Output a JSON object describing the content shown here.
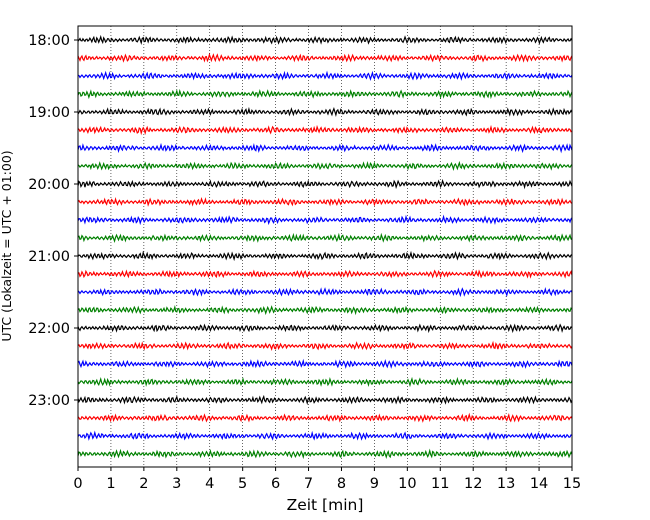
{
  "chart_data": {
    "type": "line",
    "title": "",
    "xlabel": "Zeit  [min]",
    "ylabel": "UTC (Lokalzeit = UTC + 01:00)",
    "xlim": [
      0,
      15
    ],
    "x_ticks": [
      "0",
      "1",
      "2",
      "3",
      "4",
      "5",
      "6",
      "7",
      "8",
      "9",
      "10",
      "11",
      "12",
      "13",
      "14",
      "15"
    ],
    "y_ticks": [
      "18:00",
      "19:00",
      "20:00",
      "21:00",
      "22:00",
      "23:00"
    ],
    "grid": "vertical dotted lines at each minute",
    "trace_colors": [
      "#000000",
      "#ff0000",
      "#0000ff",
      "#008000"
    ],
    "traces": [
      {
        "start": "18:00",
        "color": "#000000"
      },
      {
        "start": "18:15",
        "color": "#ff0000"
      },
      {
        "start": "18:30",
        "color": "#0000ff"
      },
      {
        "start": "18:45",
        "color": "#008000"
      },
      {
        "start": "19:00",
        "color": "#000000"
      },
      {
        "start": "19:15",
        "color": "#ff0000"
      },
      {
        "start": "19:30",
        "color": "#0000ff"
      },
      {
        "start": "19:45",
        "color": "#008000"
      },
      {
        "start": "20:00",
        "color": "#000000"
      },
      {
        "start": "20:15",
        "color": "#ff0000"
      },
      {
        "start": "20:30",
        "color": "#0000ff"
      },
      {
        "start": "20:45",
        "color": "#008000"
      },
      {
        "start": "21:00",
        "color": "#000000"
      },
      {
        "start": "21:15",
        "color": "#ff0000"
      },
      {
        "start": "21:30",
        "color": "#0000ff"
      },
      {
        "start": "21:45",
        "color": "#008000"
      },
      {
        "start": "22:00",
        "color": "#000000"
      },
      {
        "start": "22:15",
        "color": "#ff0000"
      },
      {
        "start": "22:30",
        "color": "#0000ff"
      },
      {
        "start": "22:45",
        "color": "#008000"
      },
      {
        "start": "23:00",
        "color": "#000000"
      },
      {
        "start": "23:15",
        "color": "#ff0000"
      },
      {
        "start": "23:30",
        "color": "#0000ff"
      },
      {
        "start": "23:45",
        "color": "#008000"
      }
    ]
  }
}
